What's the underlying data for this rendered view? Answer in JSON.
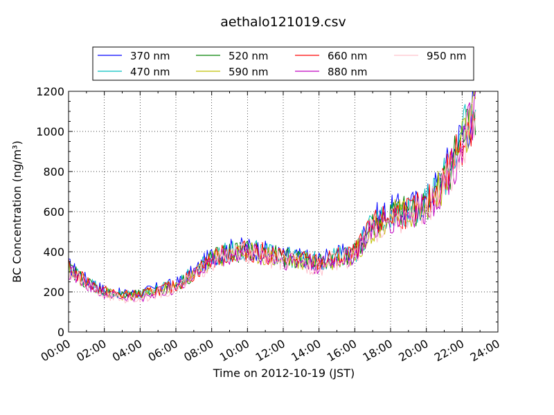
{
  "chart_data": {
    "type": "line",
    "title": "aethalo121019.csv",
    "xlabel": "Time on 2012-10-19 (JST)",
    "ylabel": "BC Concentration (ng/m³)",
    "xlim": [
      "00:00",
      "24:00"
    ],
    "ylim": [
      0,
      1200
    ],
    "x_ticks": [
      "00:00",
      "02:00",
      "04:00",
      "06:00",
      "08:00",
      "10:00",
      "12:00",
      "14:00",
      "16:00",
      "18:00",
      "20:00",
      "22:00",
      "24:00"
    ],
    "y_ticks": [
      0,
      200,
      400,
      600,
      800,
      1000,
      1200
    ],
    "grid": true,
    "legend_position": "top",
    "x": [
      "00:00",
      "01:00",
      "02:00",
      "03:00",
      "04:00",
      "05:00",
      "06:00",
      "07:00",
      "08:00",
      "09:00",
      "10:00",
      "11:00",
      "12:00",
      "13:00",
      "14:00",
      "15:00",
      "16:00",
      "17:00",
      "18:00",
      "19:00",
      "20:00",
      "21:00",
      "22:00",
      "22:45"
    ],
    "series": [
      {
        "name": "370 nm",
        "color": "#0000ff",
        "values": [
          330,
          260,
          210,
          190,
          195,
          220,
          240,
          300,
          380,
          410,
          420,
          400,
          380,
          370,
          360,
          380,
          400,
          560,
          600,
          620,
          650,
          790,
          990,
          1130
        ]
      },
      {
        "name": "470 nm",
        "color": "#00bfbf",
        "values": [
          325,
          255,
          205,
          185,
          190,
          215,
          235,
          295,
          370,
          400,
          410,
          395,
          375,
          365,
          350,
          375,
          395,
          540,
          590,
          610,
          635,
          770,
          970,
          1110
        ]
      },
      {
        "name": "520 nm",
        "color": "#008000",
        "values": [
          320,
          250,
          200,
          180,
          185,
          210,
          230,
          290,
          365,
          395,
          405,
          390,
          370,
          360,
          345,
          370,
          390,
          530,
          580,
          600,
          625,
          760,
          960,
          1100
        ]
      },
      {
        "name": "590 nm",
        "color": "#bfbf00",
        "values": [
          315,
          245,
          200,
          180,
          180,
          205,
          225,
          285,
          360,
          390,
          400,
          385,
          365,
          355,
          340,
          365,
          385,
          520,
          575,
          595,
          620,
          750,
          950,
          1090
        ]
      },
      {
        "name": "660 nm",
        "color": "#ff0000",
        "values": [
          320,
          250,
          205,
          185,
          185,
          210,
          230,
          290,
          365,
          395,
          405,
          390,
          370,
          360,
          345,
          370,
          390,
          525,
          580,
          600,
          625,
          765,
          965,
          1110
        ]
      },
      {
        "name": "880 nm",
        "color": "#bf00bf",
        "values": [
          305,
          240,
          190,
          170,
          170,
          200,
          220,
          280,
          355,
          385,
          395,
          380,
          360,
          350,
          330,
          360,
          380,
          510,
          560,
          585,
          610,
          740,
          940,
          1080
        ]
      },
      {
        "name": "950 nm",
        "color": "#ffc0cb",
        "values": [
          300,
          235,
          185,
          165,
          165,
          195,
          215,
          275,
          350,
          380,
          390,
          375,
          355,
          345,
          320,
          355,
          375,
          500,
          555,
          580,
          600,
          730,
          930,
          1070
        ]
      }
    ]
  }
}
